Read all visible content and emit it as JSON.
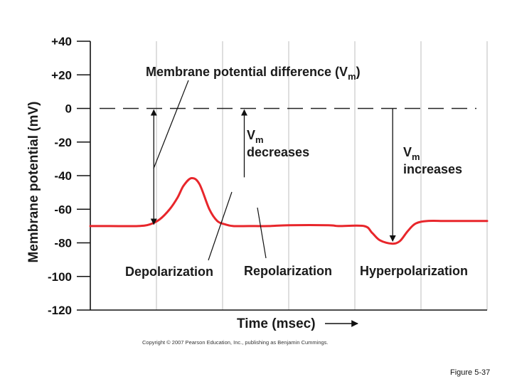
{
  "chart_data": {
    "type": "line",
    "ylabel": "Membrane potential (mV)",
    "xlabel": "Time (msec)",
    "ylim": [
      -120,
      40
    ],
    "y_ticks": [
      40,
      20,
      0,
      -20,
      -40,
      -60,
      -80,
      -100,
      -120
    ],
    "y_tick_labels": [
      "+40",
      "+20",
      "0",
      "-20",
      "-40",
      "-60",
      "-80",
      "-100",
      "-120"
    ],
    "grid": "vertical",
    "grid_lines": 6,
    "x_tick_labels": [],
    "reference_line": {
      "y": 0,
      "style": "dashed"
    },
    "series": [
      {
        "color": "#e8262b",
        "x": [
          0,
          0.5,
          1.2,
          1.5,
          1.75,
          2.0,
          2.2,
          2.35,
          2.55,
          2.75,
          3.0,
          3.2,
          3.4,
          3.6,
          4.0,
          4.5,
          5.0,
          6.0,
          6.25,
          6.9,
          7.1,
          7.3,
          7.6,
          7.8,
          8.0,
          8.2,
          8.5,
          9.0,
          10.0
        ],
        "y": [
          -70,
          -70,
          -70,
          -69,
          -66,
          -60,
          -53,
          -46,
          -41.5,
          -45,
          -60,
          -67,
          -69,
          -70,
          -70,
          -70,
          -69.5,
          -69.5,
          -70,
          -70,
          -74,
          -78.5,
          -80.5,
          -79,
          -73,
          -68.5,
          -67,
          -67,
          -67
        ]
      }
    ],
    "annotations": {
      "membrane_potential_difference": "Membrane potential difference (V",
      "membrane_potential_difference_sub": "m",
      "membrane_potential_difference_close": ")",
      "vm_decreases_v": "V",
      "vm_decreases_sub": "m",
      "vm_decreases_text": "decreases",
      "vm_increases_v": "V",
      "vm_increases_sub": "m",
      "vm_increases_text": "increases",
      "depolarization": "Depolarization",
      "repolarization": "Repolarization",
      "hyperpolarization": "Hyperpolarization"
    }
  },
  "footer": {
    "copyright": "Copyright © 2007 Pearson Education, Inc., publishing as Benjamin Cummings.",
    "figure": "Figure 5-37"
  },
  "colors": {
    "trace": "#e8262b",
    "axis": "#111111",
    "grid": "#bdbdbd",
    "dash": "#222222"
  }
}
